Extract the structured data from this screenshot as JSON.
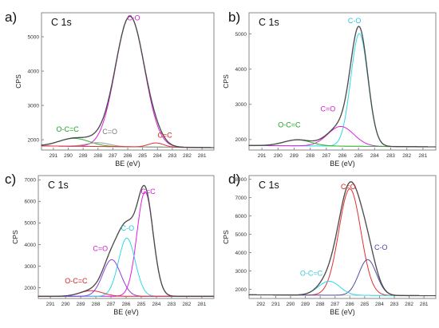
{
  "figure": {
    "panel_letters": [
      "a)",
      "b)",
      "c)",
      "d)"
    ]
  },
  "colors": {
    "envelope": "#4a4a4a",
    "magenta": "#e020e0",
    "cyan": "#30d8e8",
    "red": "#e03030",
    "green": "#30b030",
    "gray": "#9a9a9a",
    "purple": "#8a40e0",
    "navy": "#5050a0",
    "label_green": "#20a020",
    "label_gray": "#7a7a7a",
    "label_magenta": "#d020d0",
    "label_cyan": "#20c8d8",
    "label_red": "#d82020",
    "label_blue": "#4848a8",
    "label_cyan_pale": "#40c8d8"
  },
  "chart_data": [
    {
      "type": "line",
      "panel": "a)",
      "title": "C 1s",
      "xlabel": "BE (eV)",
      "ylabel": "CPS",
      "x_reversed": true,
      "xlim": [
        291.8,
        280.2
      ],
      "ylim": [
        1700,
        5700
      ],
      "xticks": [
        "291",
        "290",
        "289",
        "288",
        "287",
        "286",
        "285",
        "284",
        "283",
        "282",
        "281"
      ],
      "yticks": [
        "2000",
        "3000",
        "4000",
        "5000"
      ],
      "grid": false,
      "baseline": [
        1820,
        1770
      ],
      "envelope": {
        "color": "envelope"
      },
      "series": [
        {
          "name": "C-O",
          "color": "magenta",
          "center": 285.85,
          "fwhm": 2.3,
          "height": 3800
        },
        {
          "name": "O-C=C",
          "color": "green",
          "center": 289.6,
          "fwhm": 2.4,
          "height": 230
        },
        {
          "name": "C=O",
          "color": "gray",
          "center": 288.0,
          "fwhm": 1.8,
          "height": 110
        },
        {
          "name": "C=C",
          "color": "red",
          "center": 284.1,
          "fwhm": 1.2,
          "height": 120
        }
      ],
      "annotations": [
        {
          "text": "C-O",
          "x": 285.6,
          "y": 5480,
          "color": "label_magenta"
        },
        {
          "text": "O-C=C",
          "x": 290.05,
          "y": 2230,
          "color": "label_green"
        },
        {
          "text": "C=O",
          "x": 287.2,
          "y": 2160,
          "color": "label_gray"
        },
        {
          "text": "C=C",
          "x": 283.5,
          "y": 2060,
          "color": "label_red"
        }
      ]
    },
    {
      "type": "line",
      "panel": "b)",
      "title": "C 1s",
      "xlabel": "BE (eV)",
      "ylabel": "CPS",
      "x_reversed": true,
      "xlim": [
        291.8,
        280.2
      ],
      "ylim": [
        1700,
        5600
      ],
      "xticks": [
        "291",
        "290",
        "289",
        "288",
        "287",
        "286",
        "285",
        "284",
        "283",
        "282",
        "281"
      ],
      "yticks": [
        "2000",
        "3000",
        "4000",
        "5000"
      ],
      "grid": false,
      "baseline": [
        1830,
        1790
      ],
      "envelope": {
        "color": "envelope"
      },
      "series": [
        {
          "name": "C-O",
          "color": "cyan",
          "center": 284.95,
          "fwhm": 1.25,
          "height": 3200
        },
        {
          "name": "C=O",
          "color": "magenta",
          "center": 286.1,
          "fwhm": 1.9,
          "height": 560
        },
        {
          "name": "O-C=C",
          "color": "green",
          "center": 288.8,
          "fwhm": 2.0,
          "height": 170
        }
      ],
      "annotations": [
        {
          "text": "C-O",
          "x": 285.25,
          "y": 5300,
          "color": "label_cyan"
        },
        {
          "text": "C=O",
          "x": 286.9,
          "y": 2800,
          "color": "label_magenta"
        },
        {
          "text": "O-C=C",
          "x": 289.3,
          "y": 2350,
          "color": "label_green"
        }
      ]
    },
    {
      "type": "line",
      "panel": "c)",
      "title": "C 1s",
      "xlabel": "BE (eV)",
      "ylabel": "CPS",
      "x_reversed": true,
      "xlim": [
        291.8,
        280.2
      ],
      "ylim": [
        1500,
        7200
      ],
      "xticks": [
        "291",
        "290",
        "289",
        "288",
        "287",
        "286",
        "285",
        "284",
        "283",
        "282",
        "281"
      ],
      "yticks": [
        "2000",
        "3000",
        "4000",
        "5000",
        "6000",
        "7000"
      ],
      "grid": false,
      "baseline": [
        1600,
        1600
      ],
      "envelope": {
        "color": "envelope"
      },
      "series": [
        {
          "name": "C=C",
          "color": "magenta",
          "center": 284.75,
          "fwhm": 1.25,
          "height": 4850
        },
        {
          "name": "C-O",
          "color": "cyan",
          "center": 285.95,
          "fwhm": 1.3,
          "height": 2700
        },
        {
          "name": "C=O",
          "color": "purple",
          "center": 286.95,
          "fwhm": 1.4,
          "height": 1700
        },
        {
          "name": "O-C=C",
          "color": "red",
          "center": 288.3,
          "fwhm": 1.8,
          "height": 260
        }
      ],
      "annotations": [
        {
          "text": "C=C",
          "x": 284.55,
          "y": 6350,
          "color": "label_magenta"
        },
        {
          "text": "C-O",
          "x": 285.9,
          "y": 4650,
          "color": "label_cyan"
        },
        {
          "text": "C=O",
          "x": 287.7,
          "y": 3700,
          "color": "label_magenta"
        },
        {
          "text": "O-C=C",
          "x": 289.3,
          "y": 2200,
          "color": "label_red"
        }
      ]
    },
    {
      "type": "line",
      "panel": "d)",
      "title": "C 1s",
      "xlabel": "BE (eV)",
      "ylabel": "CPS",
      "x_reversed": true,
      "xlim": [
        292.8,
        280.2
      ],
      "ylim": [
        1500,
        8200
      ],
      "xticks": [
        "292",
        "291",
        "290",
        "289",
        "288",
        "287",
        "286",
        "285",
        "284",
        "283",
        "282",
        "281"
      ],
      "yticks": [
        "2000",
        "3000",
        "4000",
        "5000",
        "6000",
        "7000",
        "8000"
      ],
      "grid": false,
      "baseline": [
        1700,
        1650
      ],
      "envelope": {
        "color": "envelope"
      },
      "series": [
        {
          "name": "C=O",
          "color": "red",
          "center": 286.0,
          "fwhm": 1.75,
          "height": 5800
        },
        {
          "name": "C-O",
          "color": "navy",
          "center": 284.8,
          "fwhm": 1.4,
          "height": 1950
        },
        {
          "name": "O-C=C",
          "color": "cyan",
          "center": 287.4,
          "fwhm": 1.7,
          "height": 760
        }
      ],
      "annotations": [
        {
          "text": "C=O",
          "x": 286.1,
          "y": 7450,
          "color": "label_red"
        },
        {
          "text": "C-O",
          "x": 283.9,
          "y": 4150,
          "color": "label_blue"
        },
        {
          "text": "O-C=C",
          "x": 288.6,
          "y": 2750,
          "color": "label_cyan_pale"
        }
      ]
    }
  ]
}
